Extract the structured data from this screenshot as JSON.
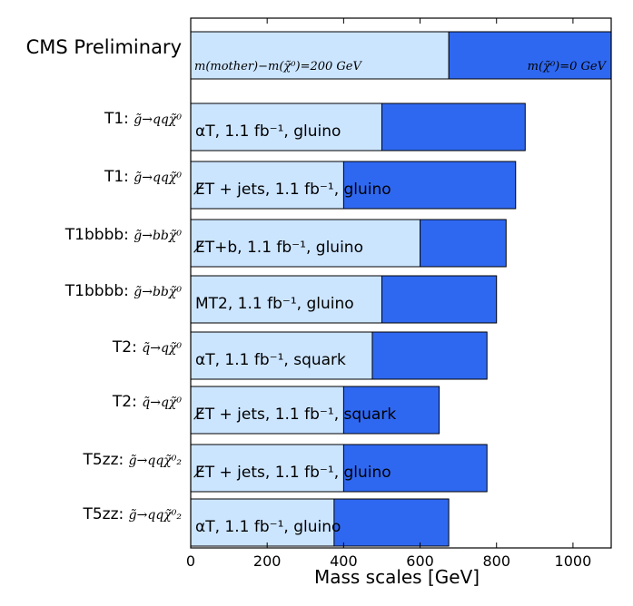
{
  "chart_data": {
    "type": "bar",
    "orientation": "horizontal",
    "title": "CMS Preliminary",
    "xlabel": "Mass scales [GeV]",
    "xlim": [
      0,
      1100
    ],
    "xticks": [
      0,
      200,
      400,
      600,
      800,
      1000
    ],
    "grid": false,
    "colors": {
      "mass_diff_200": "#cce5ff",
      "lsp_0": "#2f68f0",
      "edge": "#000000"
    },
    "legend_row": {
      "light_value": 675,
      "dark_value": 1100,
      "light_label": "m(mother)−m(χ̃⁰)=200 GeV",
      "dark_label": "m(χ̃⁰)=0 GeV"
    },
    "rows": [
      {
        "model": "T1:",
        "decay": "g̃→qqχ̃⁰",
        "analysis": "αT, 1.1 fb⁻¹, gluino",
        "light_value": 500,
        "dark_value": 875
      },
      {
        "model": "T1:",
        "decay": "g̃→qqχ̃⁰",
        "analysis": "E̸T + jets, 1.1 fb⁻¹, gluino",
        "light_value": 400,
        "dark_value": 850
      },
      {
        "model": "T1bbbb:",
        "decay": "g̃→bbχ̃⁰",
        "analysis": "E̸T+b, 1.1 fb⁻¹, gluino",
        "light_value": 600,
        "dark_value": 825
      },
      {
        "model": "T1bbbb:",
        "decay": "g̃→bbχ̃⁰",
        "analysis": "MT2, 1.1 fb⁻¹, gluino",
        "light_value": 500,
        "dark_value": 800
      },
      {
        "model": "T2:",
        "decay": "q̃→qχ̃⁰",
        "analysis": "αT, 1.1 fb⁻¹, squark",
        "light_value": 475,
        "dark_value": 775
      },
      {
        "model": "T2:",
        "decay": "q̃→qχ̃⁰",
        "analysis": "E̸T + jets, 1.1 fb⁻¹, squark",
        "light_value": 400,
        "dark_value": 650
      },
      {
        "model": "T5zz:",
        "decay": "g̃→qqχ̃⁰₂",
        "analysis": "E̸T + jets, 1.1 fb⁻¹, gluino",
        "light_value": 400,
        "dark_value": 775
      },
      {
        "model": "T5zz:",
        "decay": "g̃→qqχ̃⁰₂",
        "analysis": "αT, 1.1 fb⁻¹, gluino",
        "light_value": 375,
        "dark_value": 675
      }
    ]
  }
}
